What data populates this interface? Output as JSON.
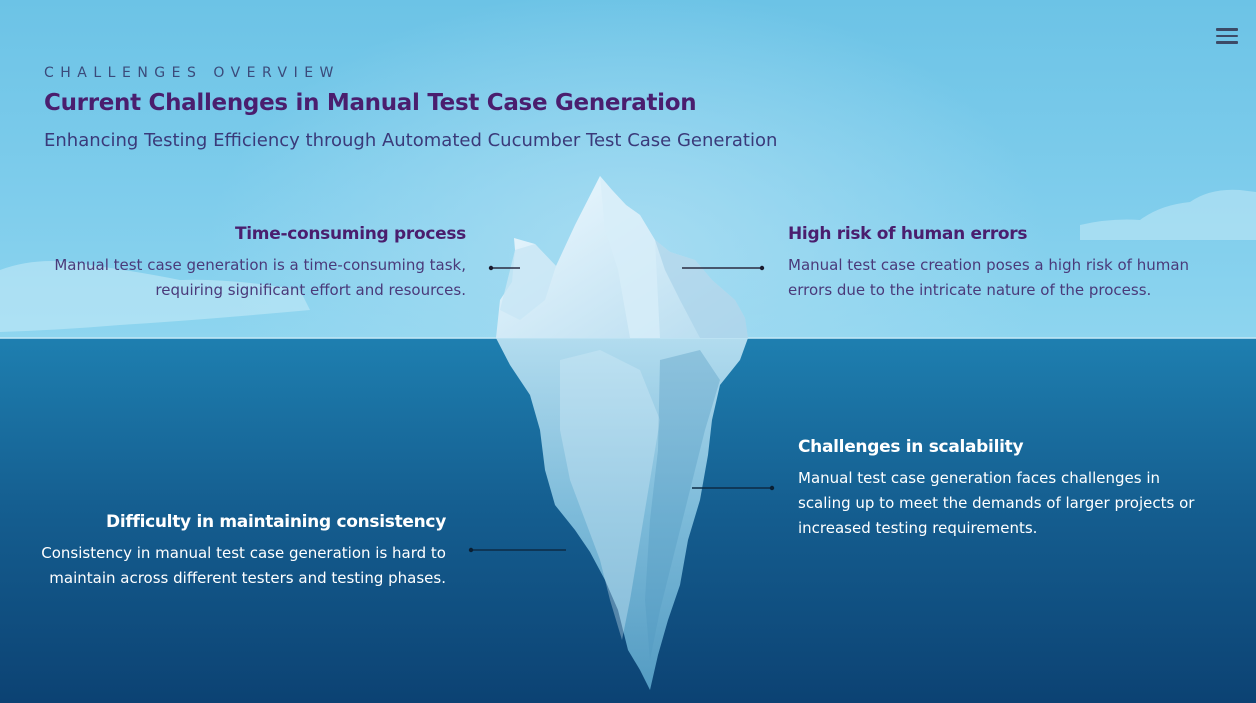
{
  "header": {
    "eyebrow": "CHALLENGES OVERVIEW",
    "title": "Current Challenges in Manual Test Case Generation",
    "subtitle": "Enhancing Testing Efficiency through Automated Cucumber Test Case Generation"
  },
  "menu": {
    "icon": "hamburger-menu-icon"
  },
  "challenges": [
    {
      "title": "Time-consuming process",
      "line1": "Manual test case generation is a time-consuming task,",
      "line2": "requiring significant effort and resources."
    },
    {
      "title": "High risk of human errors",
      "line1": "Manual test case creation poses a high risk of human",
      "line2": "errors due to the intricate nature of the process."
    },
    {
      "title": "Challenges in scalability",
      "line1": "Manual test case generation faces challenges in",
      "line2": "scaling up to meet the demands of larger projects or",
      "line3": "increased testing requirements."
    },
    {
      "title": "Difficulty in maintaining consistency",
      "line1": "Consistency in manual test case generation is hard to",
      "line2": "maintain across different testers and testing phases."
    }
  ],
  "colors": {
    "title": "#4a1e6e",
    "sky": "#7fcdec",
    "sea": "#155f91"
  }
}
